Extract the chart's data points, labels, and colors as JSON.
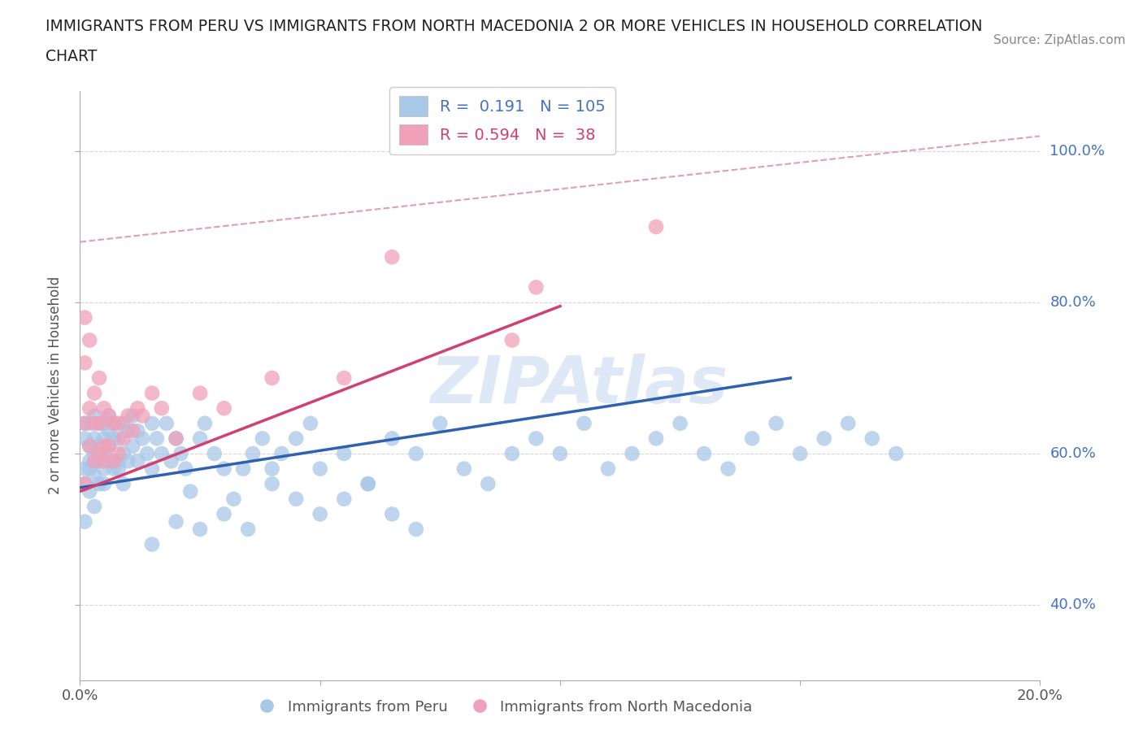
{
  "title_line1": "IMMIGRANTS FROM PERU VS IMMIGRANTS FROM NORTH MACEDONIA 2 OR MORE VEHICLES IN HOUSEHOLD CORRELATION",
  "title_line2": "CHART",
  "source": "Source: ZipAtlas.com",
  "ylabel": "2 or more Vehicles in Household",
  "xlim": [
    0.0,
    0.2
  ],
  "ylim": [
    0.3,
    1.08
  ],
  "ytick_vals": [
    0.4,
    0.6,
    0.8,
    1.0
  ],
  "ytick_labels": [
    "40.0%",
    "60.0%",
    "80.0%",
    "100.0%"
  ],
  "xtick_vals": [
    0.0,
    0.05,
    0.1,
    0.15,
    0.2
  ],
  "xtick_labels": [
    "0.0%",
    "",
    "",
    "",
    "20.0%"
  ],
  "peru_R": 0.191,
  "peru_N": 105,
  "mac_R": 0.594,
  "mac_N": 38,
  "peru_color": "#a8c8e8",
  "mac_color": "#f0a0b8",
  "peru_line_color": "#3060b0",
  "mac_line_color": "#d04070",
  "ref_line_color": "#e0a0b0",
  "grid_color": "#cccccc",
  "yaxis_label_color": "#4472c4",
  "watermark_color": "#c8daf0",
  "watermark": "ZIPAtlas",
  "peru_line_x": [
    0.0,
    0.148
  ],
  "peru_line_y": [
    0.555,
    0.7
  ],
  "mac_line_x": [
    0.0,
    0.1
  ],
  "mac_line_y": [
    0.55,
    0.795
  ],
  "ref_line_x": [
    0.0,
    0.2
  ],
  "ref_line_y": [
    0.88,
    1.02
  ],
  "peru_pts_x": [
    0.001,
    0.001,
    0.001,
    0.001,
    0.001,
    0.002,
    0.002,
    0.002,
    0.002,
    0.002,
    0.003,
    0.003,
    0.003,
    0.003,
    0.003,
    0.003,
    0.004,
    0.004,
    0.004,
    0.004,
    0.005,
    0.005,
    0.005,
    0.005,
    0.005,
    0.006,
    0.006,
    0.006,
    0.006,
    0.007,
    0.007,
    0.007,
    0.008,
    0.008,
    0.008,
    0.009,
    0.009,
    0.009,
    0.01,
    0.01,
    0.011,
    0.011,
    0.012,
    0.012,
    0.013,
    0.014,
    0.015,
    0.015,
    0.016,
    0.017,
    0.018,
    0.019,
    0.02,
    0.021,
    0.022,
    0.023,
    0.025,
    0.026,
    0.028,
    0.03,
    0.032,
    0.034,
    0.036,
    0.038,
    0.04,
    0.042,
    0.045,
    0.048,
    0.05,
    0.055,
    0.06,
    0.065,
    0.07,
    0.075,
    0.08,
    0.085,
    0.09,
    0.095,
    0.1,
    0.105,
    0.11,
    0.115,
    0.12,
    0.125,
    0.13,
    0.135,
    0.14,
    0.145,
    0.15,
    0.155,
    0.16,
    0.165,
    0.17,
    0.015,
    0.02,
    0.025,
    0.03,
    0.035,
    0.04,
    0.045,
    0.05,
    0.055,
    0.06,
    0.065,
    0.07
  ],
  "peru_pts_y": [
    0.58,
    0.62,
    0.64,
    0.56,
    0.51,
    0.59,
    0.64,
    0.61,
    0.55,
    0.58,
    0.62,
    0.65,
    0.59,
    0.6,
    0.57,
    0.53,
    0.61,
    0.59,
    0.64,
    0.56,
    0.62,
    0.58,
    0.64,
    0.6,
    0.56,
    0.63,
    0.59,
    0.65,
    0.61,
    0.58,
    0.62,
    0.64,
    0.59,
    0.62,
    0.58,
    0.64,
    0.6,
    0.56,
    0.63,
    0.59,
    0.61,
    0.65,
    0.59,
    0.63,
    0.62,
    0.6,
    0.64,
    0.58,
    0.62,
    0.6,
    0.64,
    0.59,
    0.62,
    0.6,
    0.58,
    0.55,
    0.62,
    0.64,
    0.6,
    0.58,
    0.54,
    0.58,
    0.6,
    0.62,
    0.58,
    0.6,
    0.62,
    0.64,
    0.58,
    0.6,
    0.56,
    0.62,
    0.6,
    0.64,
    0.58,
    0.56,
    0.6,
    0.62,
    0.6,
    0.64,
    0.58,
    0.6,
    0.62,
    0.64,
    0.6,
    0.58,
    0.62,
    0.64,
    0.6,
    0.62,
    0.64,
    0.62,
    0.6,
    0.48,
    0.51,
    0.5,
    0.52,
    0.5,
    0.56,
    0.54,
    0.52,
    0.54,
    0.56,
    0.52,
    0.5
  ],
  "mac_pts_x": [
    0.001,
    0.001,
    0.001,
    0.001,
    0.002,
    0.002,
    0.002,
    0.003,
    0.003,
    0.003,
    0.004,
    0.004,
    0.004,
    0.005,
    0.005,
    0.005,
    0.006,
    0.006,
    0.007,
    0.007,
    0.008,
    0.008,
    0.009,
    0.01,
    0.011,
    0.012,
    0.013,
    0.015,
    0.017,
    0.02,
    0.025,
    0.03,
    0.04,
    0.055,
    0.065,
    0.09,
    0.095,
    0.12
  ],
  "mac_pts_y": [
    0.78,
    0.72,
    0.64,
    0.56,
    0.75,
    0.66,
    0.61,
    0.68,
    0.64,
    0.59,
    0.7,
    0.64,
    0.6,
    0.66,
    0.61,
    0.59,
    0.65,
    0.61,
    0.64,
    0.59,
    0.64,
    0.6,
    0.62,
    0.65,
    0.63,
    0.66,
    0.65,
    0.68,
    0.66,
    0.62,
    0.68,
    0.66,
    0.7,
    0.7,
    0.86,
    0.75,
    0.82,
    0.9
  ]
}
